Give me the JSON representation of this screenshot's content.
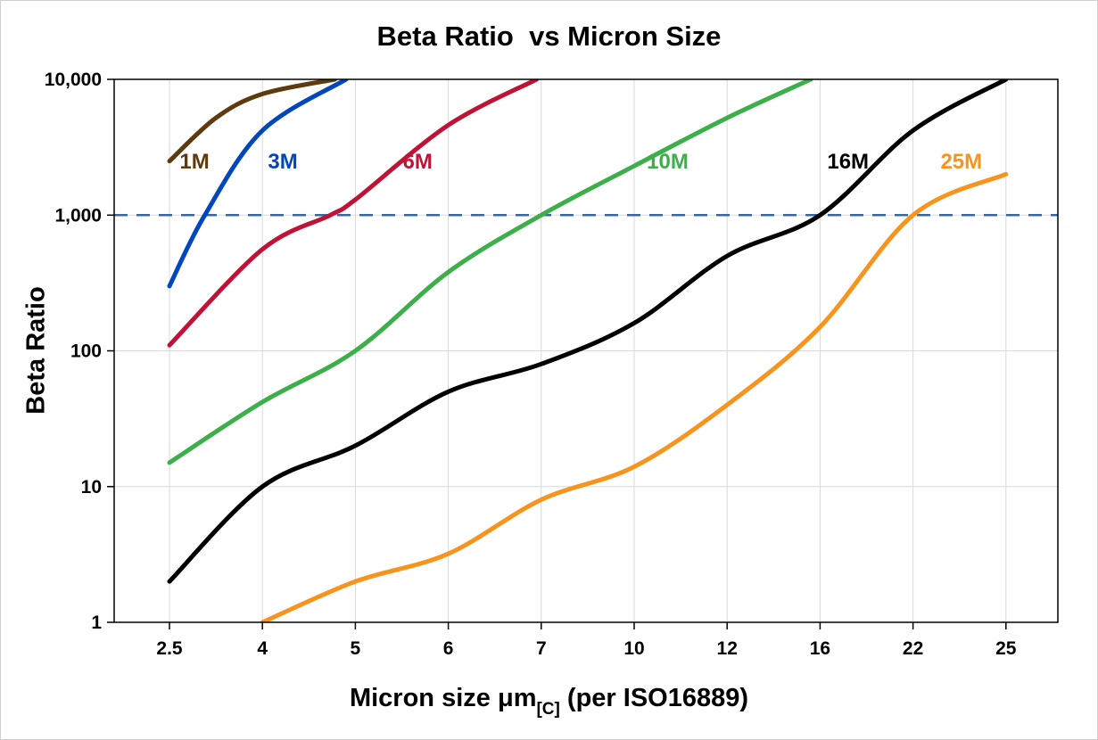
{
  "title": "Beta Ratio  vs Micron Size",
  "axes": {
    "y_label": "Beta Ratio",
    "x_label_part1": "Micron size μm",
    "x_label_sub": "[C]",
    "x_label_part2": " (per ISO16889)"
  },
  "chart_data": {
    "type": "line",
    "title": "Beta Ratio  vs Micron Size",
    "xlabel": "Micron size μm[C] (per ISO16889)",
    "ylabel": "Beta Ratio",
    "x_type": "categorical",
    "categories": [
      "2.5",
      "4",
      "5",
      "6",
      "7",
      "10",
      "12",
      "16",
      "22",
      "25"
    ],
    "y_scale": "log",
    "ylim": [
      1,
      10000
    ],
    "y_tick_labels": [
      "1",
      "10",
      "100",
      "1,000",
      "10,000"
    ],
    "y_tick_values": [
      1,
      10,
      100,
      1000,
      10000
    ],
    "grid": true,
    "grid_color": "#d9d9d9",
    "legend_position": "inline-labels",
    "reference_line": {
      "value": 1000,
      "style": "dashed",
      "color": "#39679e"
    },
    "series": [
      {
        "name": "1M",
        "color": "#5e3a0e",
        "label_at": {
          "xi": 0.27,
          "v": 2200
        },
        "points": [
          [
            0,
            2500
          ],
          [
            0.5,
            5200
          ],
          [
            1,
            7800
          ],
          [
            1.78,
            10000
          ]
        ]
      },
      {
        "name": "3M",
        "color": "#0047bb",
        "label_at": {
          "xi": 1.22,
          "v": 2200
        },
        "points": [
          [
            0,
            300
          ],
          [
            0.38,
            1000
          ],
          [
            1,
            4200
          ],
          [
            1.9,
            10000
          ]
        ]
      },
      {
        "name": "6M",
        "color": "#bf1336",
        "label_at": {
          "xi": 2.67,
          "v": 2200
        },
        "points": [
          [
            0,
            110
          ],
          [
            1,
            560
          ],
          [
            1.73,
            1000
          ],
          [
            2,
            1300
          ],
          [
            3,
            4600
          ],
          [
            3.95,
            10000
          ]
        ]
      },
      {
        "name": "10M",
        "color": "#3caf4a",
        "label_at": {
          "xi": 5.36,
          "v": 2200
        },
        "points": [
          [
            0,
            15
          ],
          [
            1,
            42
          ],
          [
            2,
            100
          ],
          [
            3,
            380
          ],
          [
            4,
            1000
          ],
          [
            5,
            2300
          ],
          [
            6,
            5200
          ],
          [
            6.9,
            10000
          ]
        ]
      },
      {
        "name": "16M",
        "color": "#000000",
        "label_at": {
          "xi": 7.3,
          "v": 2200
        },
        "points": [
          [
            0,
            2
          ],
          [
            1,
            10
          ],
          [
            2,
            20
          ],
          [
            3,
            50
          ],
          [
            4,
            80
          ],
          [
            5,
            160
          ],
          [
            6,
            500
          ],
          [
            7,
            1000
          ],
          [
            8,
            4200
          ],
          [
            9,
            10000
          ]
        ]
      },
      {
        "name": "25M",
        "color": "#f7941e",
        "label_at": {
          "xi": 8.52,
          "v": 2200
        },
        "points": [
          [
            1,
            1
          ],
          [
            2,
            2
          ],
          [
            3,
            3.2
          ],
          [
            4,
            8
          ],
          [
            5,
            14
          ],
          [
            6,
            40
          ],
          [
            7,
            150
          ],
          [
            8,
            1000
          ],
          [
            9,
            2000
          ]
        ]
      }
    ]
  }
}
